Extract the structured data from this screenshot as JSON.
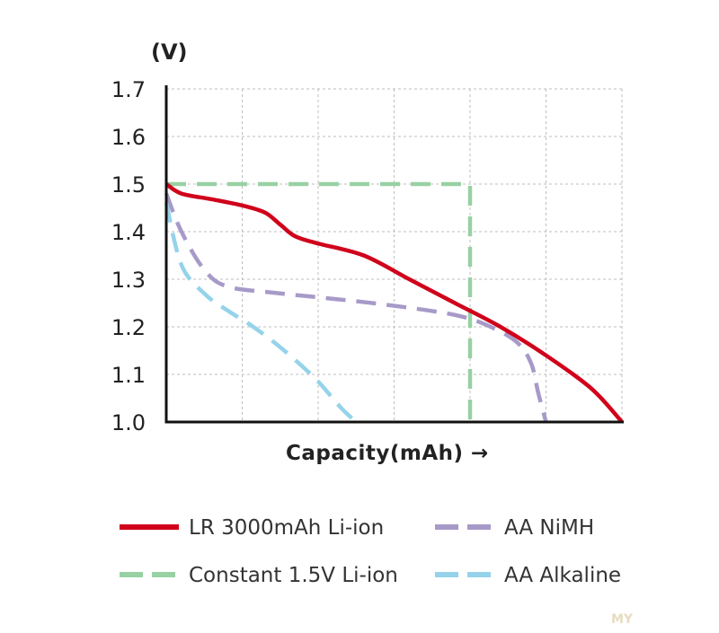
{
  "chart_data": {
    "type": "line",
    "ylabel": "(V)",
    "xlabel": "Capacity(mAh) →",
    "ylim": [
      1.0,
      1.7
    ],
    "xlim": [
      0,
      3000
    ],
    "yticks": [
      "1.0",
      "1.1",
      "1.2",
      "1.3",
      "1.4",
      "1.5",
      "1.6",
      "1.7"
    ],
    "grid": true,
    "legend_position": "bottom",
    "series": [
      {
        "name": "LR 3000mAh Li-ion",
        "color": "#d0021b",
        "style": "solid",
        "x": [
          0,
          100,
          300,
          500,
          650,
          750,
          850,
          1000,
          1300,
          1600,
          1900,
          2200,
          2500,
          2800,
          3000
        ],
        "y": [
          1.5,
          1.48,
          1.468,
          1.455,
          1.44,
          1.415,
          1.39,
          1.375,
          1.35,
          1.3,
          1.25,
          1.2,
          1.14,
          1.07,
          1.0
        ]
      },
      {
        "name": "AA NiMH",
        "color": "#a79ac8",
        "style": "dashed",
        "x": [
          0,
          100,
          250,
          400,
          700,
          1000,
          1300,
          1600,
          1900,
          2100,
          2300,
          2400,
          2450,
          2500
        ],
        "y": [
          1.48,
          1.4,
          1.32,
          1.285,
          1.272,
          1.262,
          1.252,
          1.24,
          1.225,
          1.205,
          1.17,
          1.125,
          1.06,
          1.0
        ]
      },
      {
        "name": "Constant 1.5V Li-ion",
        "color": "#98d1a4",
        "style": "dashed",
        "x": [
          0,
          2000,
          2000
        ],
        "y": [
          1.5,
          1.5,
          1.0
        ]
      },
      {
        "name": "AA Alkaline",
        "color": "#95d3ea",
        "style": "dashed",
        "x": [
          0,
          100,
          250,
          400,
          550,
          700,
          850,
          1000,
          1150,
          1250
        ],
        "y": [
          1.46,
          1.33,
          1.27,
          1.235,
          1.205,
          1.17,
          1.13,
          1.085,
          1.03,
          1.0
        ]
      }
    ]
  },
  "watermark": "MY"
}
